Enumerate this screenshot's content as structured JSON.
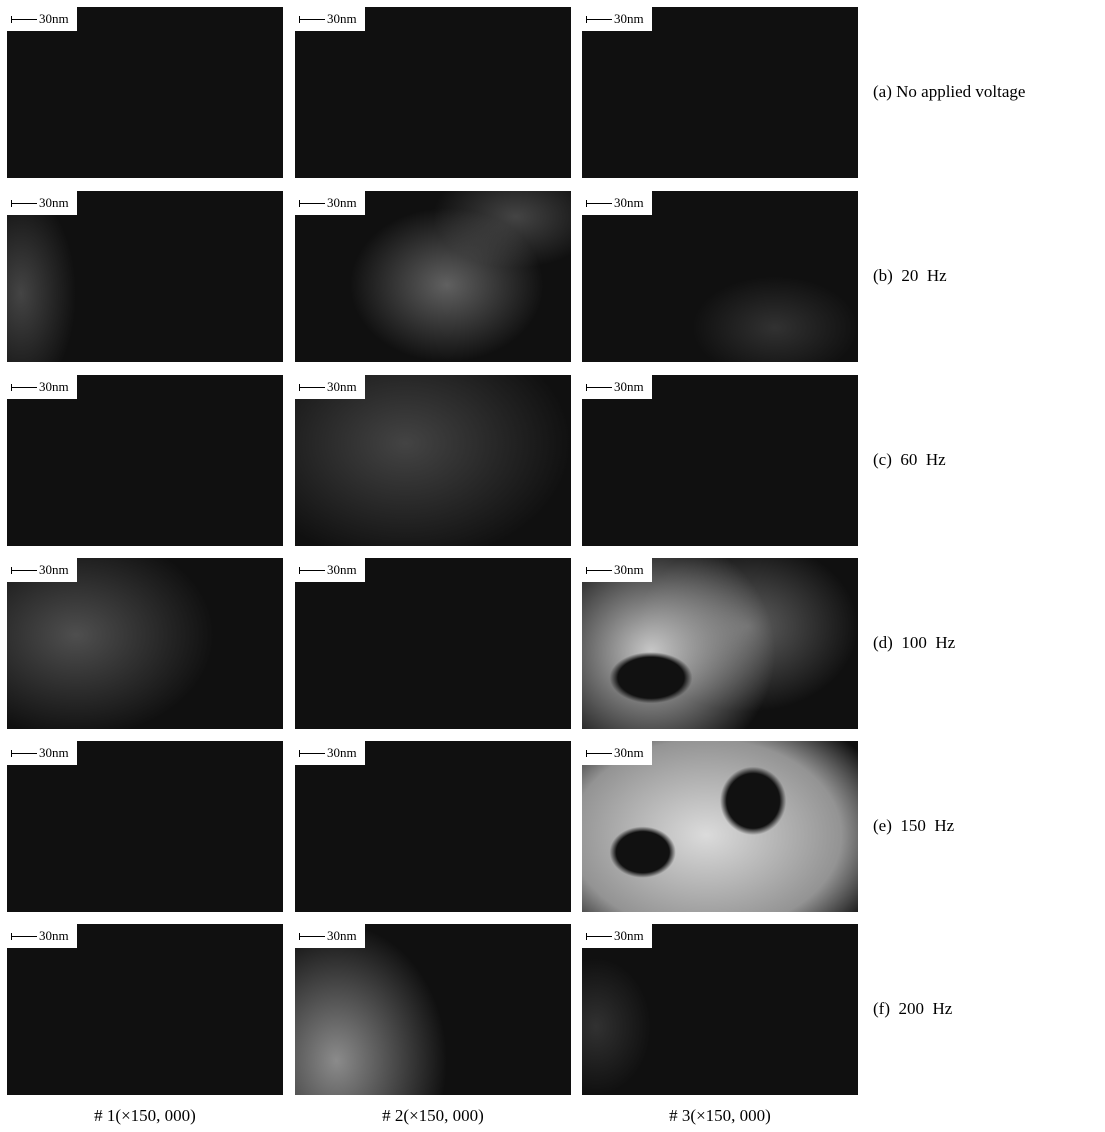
{
  "rows": [
    {
      "label": "(a) No applied voltage",
      "panels": [
        {
          "scale": "30nm"
        },
        {
          "scale": "30nm"
        },
        {
          "scale": "30nm"
        }
      ]
    },
    {
      "label": "(b)  20  Hz",
      "panels": [
        {
          "scale": "30nm"
        },
        {
          "scale": "30nm"
        },
        {
          "scale": "30nm"
        }
      ]
    },
    {
      "label": "(c)  60  Hz",
      "panels": [
        {
          "scale": "30nm"
        },
        {
          "scale": "30nm"
        },
        {
          "scale": "30nm"
        }
      ]
    },
    {
      "label": "(d)  100  Hz",
      "panels": [
        {
          "scale": "30nm"
        },
        {
          "scale": "30nm"
        },
        {
          "scale": "30nm"
        }
      ]
    },
    {
      "label": "(e)  150  Hz",
      "panels": [
        {
          "scale": "30nm"
        },
        {
          "scale": "30nm"
        },
        {
          "scale": "30nm"
        }
      ]
    },
    {
      "label": "(f)  200  Hz",
      "panels": [
        {
          "scale": "30nm"
        },
        {
          "scale": "30nm"
        },
        {
          "scale": "30nm"
        }
      ]
    }
  ],
  "columns": [
    {
      "label": "# 1(×150, 000)"
    },
    {
      "label": "# 2(×150, 000)"
    },
    {
      "label": "# 3(×150, 000)"
    }
  ]
}
